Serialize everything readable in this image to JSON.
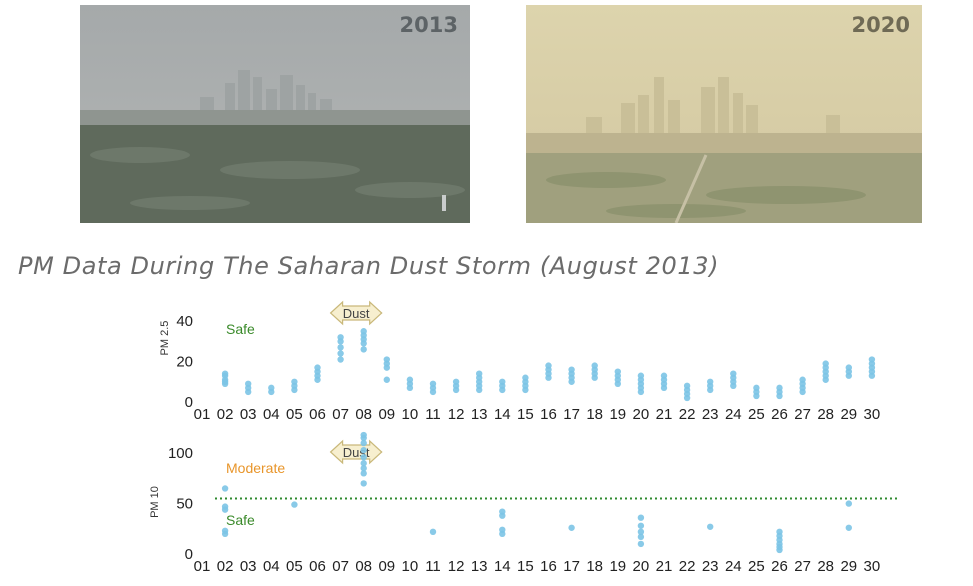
{
  "photos": [
    {
      "year": "2013",
      "tint": "#a7abac"
    },
    {
      "year": "2020",
      "tint": "#d9cfa6"
    }
  ],
  "title": "PM Data During The Saharan Dust Storm (August 2013)",
  "colors": {
    "points": "#7cc4e6",
    "safe": "#3a8a2a",
    "moderate": "#e8952a",
    "threshold": "#2f8a2f",
    "arrow_fill": "#f7efcf",
    "arrow_stroke": "#c9b87a"
  },
  "chart_data": [
    {
      "type": "scatter",
      "ylabel": "PM 2.5",
      "ylim": [
        0,
        45
      ],
      "yticks": [
        0,
        20,
        40
      ],
      "x_ticks": [
        "01",
        "02",
        "03",
        "04",
        "05",
        "06",
        "07",
        "08",
        "09",
        "10",
        "11",
        "12",
        "13",
        "14",
        "15",
        "16",
        "17",
        "18",
        "19",
        "20",
        "21",
        "22",
        "23",
        "24",
        "25",
        "26",
        "27",
        "28",
        "29",
        "30"
      ],
      "annotations": [
        {
          "text": "Safe",
          "color": "safe"
        }
      ],
      "dust_label": "Dust",
      "dust_range": [
        "07",
        "08"
      ],
      "points": [
        {
          "x": "02",
          "y": [
            9,
            11,
            13,
            14,
            10
          ]
        },
        {
          "x": "03",
          "y": [
            5,
            7,
            9
          ]
        },
        {
          "x": "04",
          "y": [
            5,
            7
          ]
        },
        {
          "x": "05",
          "y": [
            6,
            8,
            10
          ]
        },
        {
          "x": "06",
          "y": [
            11,
            13,
            15,
            17
          ]
        },
        {
          "x": "07",
          "y": [
            21,
            24,
            27,
            30,
            32
          ]
        },
        {
          "x": "08",
          "y": [
            26,
            29,
            31,
            33,
            35
          ]
        },
        {
          "x": "09",
          "y": [
            11,
            17,
            19,
            21
          ]
        },
        {
          "x": "10",
          "y": [
            7,
            9,
            11
          ]
        },
        {
          "x": "11",
          "y": [
            5,
            7,
            9
          ]
        },
        {
          "x": "12",
          "y": [
            6,
            8,
            10
          ]
        },
        {
          "x": "13",
          "y": [
            6,
            8,
            10,
            12,
            14
          ]
        },
        {
          "x": "14",
          "y": [
            6,
            8,
            10
          ]
        },
        {
          "x": "15",
          "y": [
            6,
            8,
            10,
            12
          ]
        },
        {
          "x": "16",
          "y": [
            12,
            14,
            16,
            18
          ]
        },
        {
          "x": "17",
          "y": [
            10,
            12,
            14,
            16
          ]
        },
        {
          "x": "18",
          "y": [
            12,
            14,
            16,
            18
          ]
        },
        {
          "x": "19",
          "y": [
            9,
            11,
            13,
            15
          ]
        },
        {
          "x": "20",
          "y": [
            5,
            7,
            9,
            11,
            13
          ]
        },
        {
          "x": "21",
          "y": [
            7,
            9,
            11,
            13
          ]
        },
        {
          "x": "22",
          "y": [
            2,
            4,
            6,
            8
          ]
        },
        {
          "x": "23",
          "y": [
            6,
            8,
            10
          ]
        },
        {
          "x": "24",
          "y": [
            8,
            10,
            12,
            14
          ]
        },
        {
          "x": "25",
          "y": [
            3,
            5,
            7
          ]
        },
        {
          "x": "26",
          "y": [
            3,
            5,
            7
          ]
        },
        {
          "x": "27",
          "y": [
            5,
            7,
            9,
            11
          ]
        },
        {
          "x": "28",
          "y": [
            11,
            13,
            15,
            17,
            19
          ]
        },
        {
          "x": "29",
          "y": [
            13,
            15,
            17
          ]
        },
        {
          "x": "30",
          "y": [
            13,
            15,
            17,
            19,
            21
          ]
        }
      ]
    },
    {
      "type": "scatter",
      "ylabel": "PM 10",
      "ylim": [
        0,
        120
      ],
      "yticks": [
        0,
        50,
        100
      ],
      "threshold": 55,
      "x_ticks": [
        "01",
        "02",
        "03",
        "04",
        "05",
        "06",
        "07",
        "08",
        "09",
        "10",
        "11",
        "12",
        "13",
        "14",
        "15",
        "16",
        "17",
        "18",
        "19",
        "20",
        "21",
        "22",
        "23",
        "24",
        "25",
        "26",
        "27",
        "28",
        "29",
        "30"
      ],
      "annotations": [
        {
          "text": "Moderate",
          "color": "moderate"
        },
        {
          "text": "Safe",
          "color": "safe"
        }
      ],
      "dust_label": "Dust",
      "dust_range": [
        "07",
        "08"
      ],
      "points": [
        {
          "x": "02",
          "y": [
            20,
            23,
            44,
            47,
            65
          ]
        },
        {
          "x": "05",
          "y": [
            49
          ]
        },
        {
          "x": "08",
          "y": [
            70,
            80,
            85,
            90,
            96,
            103,
            110,
            115,
            118
          ]
        },
        {
          "x": "11",
          "y": [
            22
          ]
        },
        {
          "x": "14",
          "y": [
            20,
            24,
            38,
            42
          ]
        },
        {
          "x": "17",
          "y": [
            26
          ]
        },
        {
          "x": "20",
          "y": [
            10,
            17,
            22,
            28,
            36
          ]
        },
        {
          "x": "23",
          "y": [
            27
          ]
        },
        {
          "x": "26",
          "y": [
            4,
            7,
            10,
            14,
            18,
            22
          ]
        },
        {
          "x": "29",
          "y": [
            26,
            50
          ]
        }
      ]
    }
  ]
}
